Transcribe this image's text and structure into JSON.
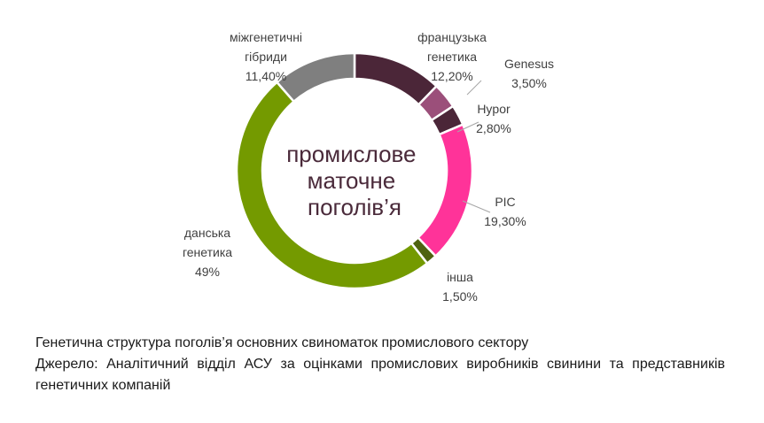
{
  "chart_data": {
    "type": "pie",
    "donut": true,
    "center_text": [
      "промислове",
      "маточне",
      "поголів’я"
    ],
    "series": [
      {
        "lines": [
          "французька",
          "генетика",
          "12,20%"
        ],
        "value": 12.2,
        "color": "#4b2638"
      },
      {
        "lines": [
          "Genesus",
          "3,50%"
        ],
        "value": 3.5,
        "color": "#9b4f7a"
      },
      {
        "lines": [
          "Hypor",
          "2,80%"
        ],
        "value": 2.8,
        "color": "#4b2638"
      },
      {
        "lines": [
          "PIC",
          "19,30%"
        ],
        "value": 19.3,
        "color": "#ff3399"
      },
      {
        "lines": [
          "інша",
          "1,50%"
        ],
        "value": 1.5,
        "color": "#4f6310"
      },
      {
        "lines": [
          "данська",
          "генетика",
          "49%"
        ],
        "value": 49,
        "color": "#749a00"
      },
      {
        "lines": [
          "міжгенетичні",
          "гібриди",
          "11,40%"
        ],
        "value": 11.4,
        "color": "#7f7f7f"
      }
    ]
  },
  "caption": {
    "line1": "Генетична структура поголів’я основних свиноматок промислового сектору",
    "line2": "Джерело: Аналітичний відділ АСУ за оцінками промислових виробників свинини та представників генетичних компаній"
  }
}
